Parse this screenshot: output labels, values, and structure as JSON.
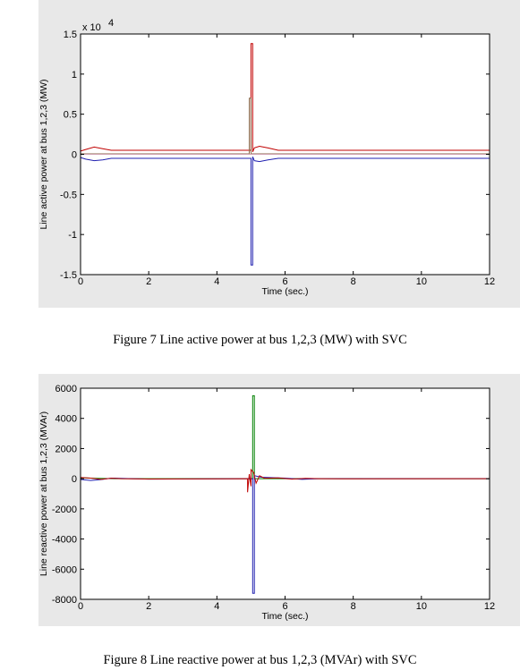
{
  "charts": [
    {
      "caption": "Figure 7 Line active power at bus 1,2,3 (MW) with SVC",
      "chart_data": {
        "type": "line",
        "title": "",
        "xlabel": "Time (sec.)",
        "ylabel": "Line active power at bus 1,2,3 (MW)",
        "exponent_label": "x 10",
        "exponent_power": "4",
        "xlim": [
          0,
          12
        ],
        "ylim": [
          -1.5,
          1.5
        ],
        "xticks": [
          "0",
          "2",
          "4",
          "6",
          "8",
          "10",
          "12"
        ],
        "yticks": [
          "-1.5",
          "-1",
          "-0.5",
          "0",
          "0.5",
          "1",
          "1.5"
        ],
        "grid": false,
        "series": [
          {
            "color": "#c00000",
            "x": [
              0,
              0.15,
              0.4,
              0.65,
              0.9,
              5.0,
              5.0,
              5.05,
              5.05,
              5.1,
              5.25,
              5.5,
              5.8,
              6.0,
              12
            ],
            "y": [
              0.04,
              0.06,
              0.09,
              0.07,
              0.05,
              0.05,
              1.38,
              1.38,
              0.03,
              0.08,
              0.1,
              0.08,
              0.05,
              0.05,
              0.05
            ]
          },
          {
            "color": "#2020b0",
            "x": [
              0,
              0.15,
              0.4,
              0.65,
              0.9,
              5.0,
              5.0,
              5.05,
              5.05,
              5.1,
              5.25,
              5.5,
              5.8,
              6.0,
              12
            ],
            "y": [
              -0.04,
              -0.06,
              -0.08,
              -0.07,
              -0.05,
              -0.05,
              -1.38,
              -1.38,
              -0.03,
              -0.08,
              -0.09,
              -0.07,
              -0.05,
              -0.05,
              -0.05
            ]
          },
          {
            "color": "#8a6a4a",
            "x": [
              0,
              4.95,
              4.95,
              5.0,
              5.0,
              12
            ],
            "y": [
              0.005,
              0.005,
              0.7,
              0.7,
              0.005,
              0.005
            ]
          },
          {
            "color": "#d0a0b0",
            "x": [
              0,
              12
            ],
            "y": [
              0.0,
              0.0
            ]
          }
        ]
      }
    },
    {
      "caption": "Figure 8 Line reactive power at bus 1,2,3 (MVAr) with SVC",
      "chart_data": {
        "type": "line",
        "title": "",
        "xlabel": "Time (sec.)",
        "ylabel": "Line reactive power at bus 1,2,3 (MVAr)",
        "xlim": [
          0,
          12
        ],
        "ylim": [
          -8000,
          6000
        ],
        "xticks": [
          "0",
          "2",
          "4",
          "6",
          "8",
          "10",
          "12"
        ],
        "yticks": [
          "-8000",
          "-6000",
          "-4000",
          "-2000",
          "0",
          "2000",
          "4000",
          "6000"
        ],
        "grid": false,
        "series": [
          {
            "color": "#008000",
            "x": [
              0,
              0.5,
              1.0,
              5.0,
              5.05,
              5.05,
              5.1,
              5.1,
              12
            ],
            "y": [
              60,
              20,
              0,
              0,
              0,
              5500,
              5500,
              0,
              0
            ]
          },
          {
            "color": "#2020b0",
            "x": [
              0,
              0.3,
              0.6,
              0.9,
              1.5,
              2.0,
              5.0,
              5.05,
              5.05,
              5.1,
              5.1,
              5.3,
              6.0,
              6.5,
              7.0,
              12
            ],
            "y": [
              -50,
              -120,
              -60,
              40,
              0,
              -30,
              0,
              0,
              -7600,
              -7600,
              200,
              100,
              40,
              -40,
              0,
              0
            ]
          },
          {
            "color": "#c00000",
            "x": [
              0,
              0.3,
              0.6,
              0.9,
              1.2,
              2.0,
              4.9,
              4.9,
              4.95,
              5.0,
              5.0,
              5.08,
              5.15,
              5.25,
              5.4,
              5.8,
              6.2,
              6.6,
              7.0,
              8.0,
              12
            ],
            "y": [
              80,
              40,
              -40,
              30,
              0,
              -20,
              0,
              -900,
              300,
              -500,
              600,
              400,
              -300,
              200,
              30,
              50,
              -30,
              20,
              0,
              -10,
              0
            ]
          }
        ]
      }
    }
  ]
}
